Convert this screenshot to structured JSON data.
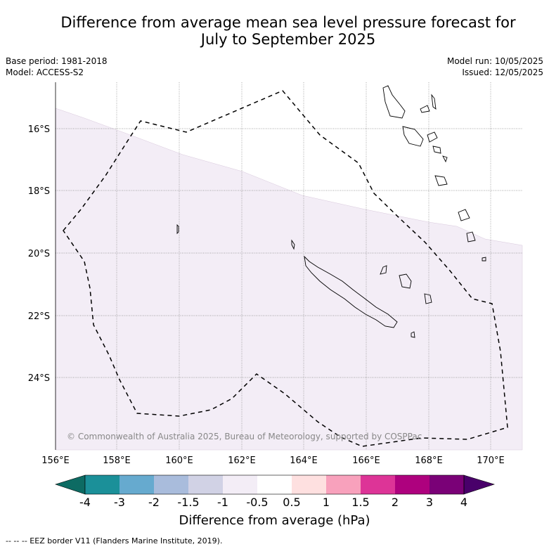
{
  "title_line1": "Difference from average mean sea level pressure forecast for",
  "title_line2": "July to September 2025",
  "meta": {
    "base_period": "Base period: 1981-2018",
    "model": "Model: ACCESS-S2",
    "model_run": "Model run: 10/05/2025",
    "issued": "Issued: 12/05/2025"
  },
  "copyright": "© Commonwealth of Australia 2025, Bureau of Meteorology, supported by COSPPac",
  "map": {
    "lon_labels": [
      "156°E",
      "158°E",
      "160°E",
      "162°E",
      "164°E",
      "166°E",
      "168°E",
      "170°E"
    ],
    "lat_labels": [
      "16°S",
      "18°S",
      "20°S",
      "22°S",
      "24°S"
    ],
    "shading_class": "-1 to -0.5",
    "shading_color": "#f3edf6"
  },
  "colorbar": {
    "title": "Difference from average (hPa)",
    "ticks": [
      "-4",
      "-3",
      "-2",
      "-1.5",
      "-1",
      "-0.5",
      "0.5",
      "1",
      "1.5",
      "2",
      "3",
      "4"
    ],
    "colors": [
      "#0d6b63",
      "#1b9099",
      "#66aacf",
      "#a9bcdc",
      "#d1d2e5",
      "#f3edf6",
      "#ffffff",
      "#fee0e0",
      "#f8a1bc",
      "#dd3497",
      "#ae017e",
      "#7a0177",
      "#49006a"
    ]
  },
  "legend_text": "-- -- -- EEZ border V11 (Flanders Marine Institute, 2019)."
}
